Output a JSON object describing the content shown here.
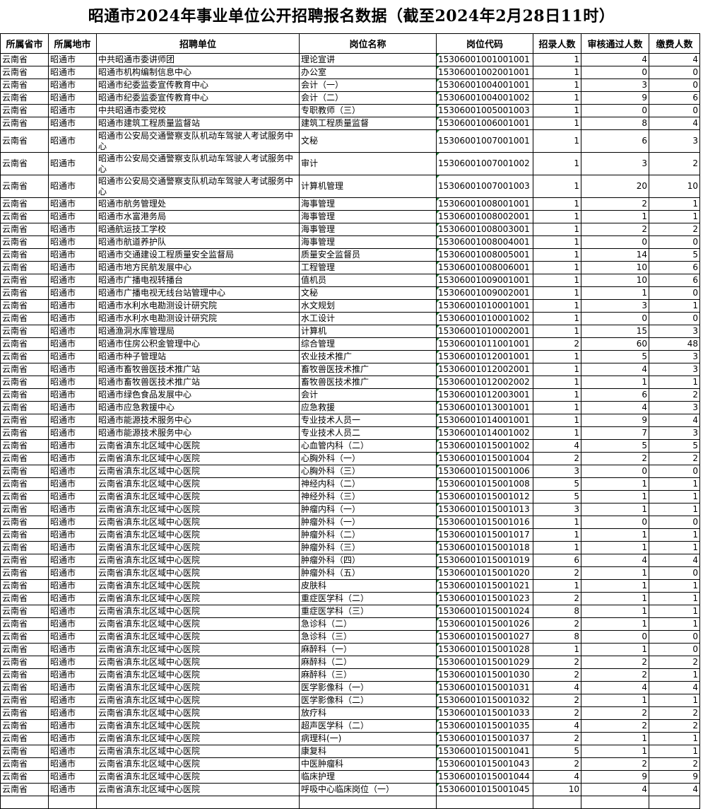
{
  "title": "昭通市2024年事业单位公开招聘报名数据（截至2024年2月28日11时）",
  "headers": [
    "所属省市",
    "所属地市",
    "招聘单位",
    "岗位名称",
    "岗位代码",
    "招录人数",
    "审核通过人数",
    "缴费人数"
  ],
  "rows": [
    [
      "云南省",
      "昭通市",
      "中共昭通市委讲师团",
      "理论宣讲",
      "15306001001001001",
      "1",
      "4",
      "4"
    ],
    [
      "云南省",
      "昭通市",
      "昭通市机构编制信息中心",
      "办公室",
      "15306001002001001",
      "1",
      "0",
      "0"
    ],
    [
      "云南省",
      "昭通市",
      "昭通市纪委监委宣传教育中心",
      "会计（一）",
      "15306001004001001",
      "1",
      "3",
      "0"
    ],
    [
      "云南省",
      "昭通市",
      "昭通市纪委监委宣传教育中心",
      "会计（二）",
      "15306001004001002",
      "1",
      "9",
      "6"
    ],
    [
      "云南省",
      "昭通市",
      "中共昭通市委党校",
      "专职教师（三）",
      "15306001005001003",
      "1",
      "0",
      "0"
    ],
    [
      "云南省",
      "昭通市",
      "昭通市建筑工程质量监督站",
      "建筑工程质量监督",
      "15306001006001001",
      "1",
      "8",
      "4"
    ],
    [
      "云南省",
      "昭通市",
      "昭通市公安局交通警察支队机动车驾驶人考试服务中心",
      "文秘",
      "15306001007001001",
      "1",
      "6",
      "3"
    ],
    [
      "云南省",
      "昭通市",
      "昭通市公安局交通警察支队机动车驾驶人考试服务中心",
      "审计",
      "15306001007001002",
      "1",
      "3",
      "2"
    ],
    [
      "云南省",
      "昭通市",
      "昭通市公安局交通警察支队机动车驾驶人考试服务中心",
      "计算机管理",
      "15306001007001003",
      "1",
      "20",
      "10"
    ],
    [
      "云南省",
      "昭通市",
      "昭通市航务管理处",
      "海事管理",
      "15306001008001001",
      "1",
      "2",
      "1"
    ],
    [
      "云南省",
      "昭通市",
      "昭通市水富港务局",
      "海事管理",
      "15306001008002001",
      "1",
      "1",
      "1"
    ],
    [
      "云南省",
      "昭通市",
      "昭通航运技工学校",
      "海事管理",
      "15306001008003001",
      "1",
      "2",
      "2"
    ],
    [
      "云南省",
      "昭通市",
      "昭通市航道养护队",
      "海事管理",
      "15306001008004001",
      "1",
      "0",
      "0"
    ],
    [
      "云南省",
      "昭通市",
      "昭通市交通建设工程质量安全监督局",
      "质量安全监督员",
      "15306001008005001",
      "1",
      "14",
      "5"
    ],
    [
      "云南省",
      "昭通市",
      "昭通市地方民航发展中心",
      "工程管理",
      "15306001008006001",
      "1",
      "10",
      "6"
    ],
    [
      "云南省",
      "昭通市",
      "昭通市广播电视转播台",
      "值机员",
      "15306001009001001",
      "1",
      "10",
      "6"
    ],
    [
      "云南省",
      "昭通市",
      "昭通市广播电视无线台站管理中心",
      "文秘",
      "15306001009002001",
      "1",
      "1",
      "0"
    ],
    [
      "云南省",
      "昭通市",
      "昭通市水利水电勘测设计研究院",
      "水文规划",
      "15306001010001001",
      "1",
      "3",
      "1"
    ],
    [
      "云南省",
      "昭通市",
      "昭通市水利水电勘测设计研究院",
      "水工设计",
      "15306001010001002",
      "1",
      "0",
      "0"
    ],
    [
      "云南省",
      "昭通市",
      "昭通渔洞水库管理局",
      "计算机",
      "15306001010002001",
      "1",
      "15",
      "3"
    ],
    [
      "云南省",
      "昭通市",
      "昭通市住房公积金管理中心",
      "综合管理",
      "15306001011001001",
      "2",
      "60",
      "48"
    ],
    [
      "云南省",
      "昭通市",
      "昭通市种子管理站",
      "农业技术推广",
      "15306001012001001",
      "1",
      "5",
      "3"
    ],
    [
      "云南省",
      "昭通市",
      "昭通市畜牧兽医技术推广站",
      "畜牧兽医技术推广",
      "15306001012002001",
      "1",
      "4",
      "3"
    ],
    [
      "云南省",
      "昭通市",
      "昭通市畜牧兽医技术推广站",
      "畜牧兽医技术推广",
      "15306001012002002",
      "1",
      "1",
      "1"
    ],
    [
      "云南省",
      "昭通市",
      "昭通市绿色食品发展中心",
      "会计",
      "15306001012003001",
      "1",
      "6",
      "2"
    ],
    [
      "云南省",
      "昭通市",
      "昭通市应急救援中心",
      "应急救援",
      "15306001013001001",
      "1",
      "4",
      "3"
    ],
    [
      "云南省",
      "昭通市",
      "昭通市能源技术服务中心",
      "专业技术人员一",
      "15306001014001001",
      "1",
      "9",
      "4"
    ],
    [
      "云南省",
      "昭通市",
      "昭通市能源技术服务中心",
      "专业技术人员二",
      "15306001014001002",
      "1",
      "7",
      "3"
    ],
    [
      "云南省",
      "昭通市",
      "云南省滇东北区域中心医院",
      "心血管内科（二）",
      "15306001015001002",
      "4",
      "5",
      "5"
    ],
    [
      "云南省",
      "昭通市",
      "云南省滇东北区域中心医院",
      "心胸外科（一）",
      "15306001015001004",
      "2",
      "2",
      "2"
    ],
    [
      "云南省",
      "昭通市",
      "云南省滇东北区域中心医院",
      "心胸外科（三）",
      "15306001015001006",
      "3",
      "0",
      "0"
    ],
    [
      "云南省",
      "昭通市",
      "云南省滇东北区域中心医院",
      "神经内科（二）",
      "15306001015001008",
      "5",
      "1",
      "1"
    ],
    [
      "云南省",
      "昭通市",
      "云南省滇东北区域中心医院",
      "神经外科（三）",
      "15306001015001012",
      "5",
      "1",
      "1"
    ],
    [
      "云南省",
      "昭通市",
      "云南省滇东北区域中心医院",
      "肿瘤内科（一）",
      "15306001015001013",
      "3",
      "1",
      "1"
    ],
    [
      "云南省",
      "昭通市",
      "云南省滇东北区域中心医院",
      "肿瘤外科（一）",
      "15306001015001016",
      "1",
      "0",
      "0"
    ],
    [
      "云南省",
      "昭通市",
      "云南省滇东北区域中心医院",
      "肿瘤外科（二）",
      "15306001015001017",
      "1",
      "1",
      "1"
    ],
    [
      "云南省",
      "昭通市",
      "云南省滇东北区域中心医院",
      "肿瘤外科（三）",
      "15306001015001018",
      "1",
      "1",
      "1"
    ],
    [
      "云南省",
      "昭通市",
      "云南省滇东北区域中心医院",
      "肿瘤外科（四）",
      "15306001015001019",
      "6",
      "4",
      "4"
    ],
    [
      "云南省",
      "昭通市",
      "云南省滇东北区域中心医院",
      "肿瘤外科（五）",
      "15306001015001020",
      "2",
      "1",
      "0"
    ],
    [
      "云南省",
      "昭通市",
      "云南省滇东北区域中心医院",
      "皮肤科",
      "15306001015001021",
      "1",
      "1",
      "1"
    ],
    [
      "云南省",
      "昭通市",
      "云南省滇东北区域中心医院",
      "重症医学科（二）",
      "15306001015001023",
      "2",
      "1",
      "1"
    ],
    [
      "云南省",
      "昭通市",
      "云南省滇东北区域中心医院",
      "重症医学科（三）",
      "15306001015001024",
      "8",
      "1",
      "1"
    ],
    [
      "云南省",
      "昭通市",
      "云南省滇东北区域中心医院",
      "急诊科（二）",
      "15306001015001026",
      "2",
      "1",
      "1"
    ],
    [
      "云南省",
      "昭通市",
      "云南省滇东北区域中心医院",
      "急诊科（三）",
      "15306001015001027",
      "8",
      "0",
      "0"
    ],
    [
      "云南省",
      "昭通市",
      "云南省滇东北区域中心医院",
      "麻醉科（一）",
      "15306001015001028",
      "1",
      "1",
      "0"
    ],
    [
      "云南省",
      "昭通市",
      "云南省滇东北区域中心医院",
      "麻醉科（二）",
      "15306001015001029",
      "2",
      "2",
      "2"
    ],
    [
      "云南省",
      "昭通市",
      "云南省滇东北区域中心医院",
      "麻醉科（三）",
      "15306001015001030",
      "2",
      "2",
      "1"
    ],
    [
      "云南省",
      "昭通市",
      "云南省滇东北区域中心医院",
      "医学影像科（一）",
      "15306001015001031",
      "4",
      "4",
      "4"
    ],
    [
      "云南省",
      "昭通市",
      "云南省滇东北区域中心医院",
      "医学影像科（二）",
      "15306001015001032",
      "2",
      "1",
      "1"
    ],
    [
      "云南省",
      "昭通市",
      "云南省滇东北区域中心医院",
      "放疗科",
      "15306001015001033",
      "2",
      "2",
      "2"
    ],
    [
      "云南省",
      "昭通市",
      "云南省滇东北区域中心医院",
      "超声医学科（二）",
      "15306001015001035",
      "4",
      "2",
      "2"
    ],
    [
      "云南省",
      "昭通市",
      "云南省滇东北区域中心医院",
      "病理科(一)",
      "15306001015001037",
      "2",
      "1",
      "1"
    ],
    [
      "云南省",
      "昭通市",
      "云南省滇东北区域中心医院",
      "康复科",
      "15306001015001041",
      "5",
      "1",
      "1"
    ],
    [
      "云南省",
      "昭通市",
      "云南省滇东北区域中心医院",
      "中医肿瘤科",
      "15306001015001043",
      "2",
      "2",
      "2"
    ],
    [
      "云南省",
      "昭通市",
      "云南省滇东北区域中心医院",
      "临床护理",
      "15306001015001044",
      "4",
      "9",
      "9"
    ],
    [
      "云南省",
      "昭通市",
      "云南省滇东北区域中心医院",
      "呼吸中心临床岗位（一）",
      "15306001015001045",
      "10",
      "4",
      "4"
    ]
  ]
}
